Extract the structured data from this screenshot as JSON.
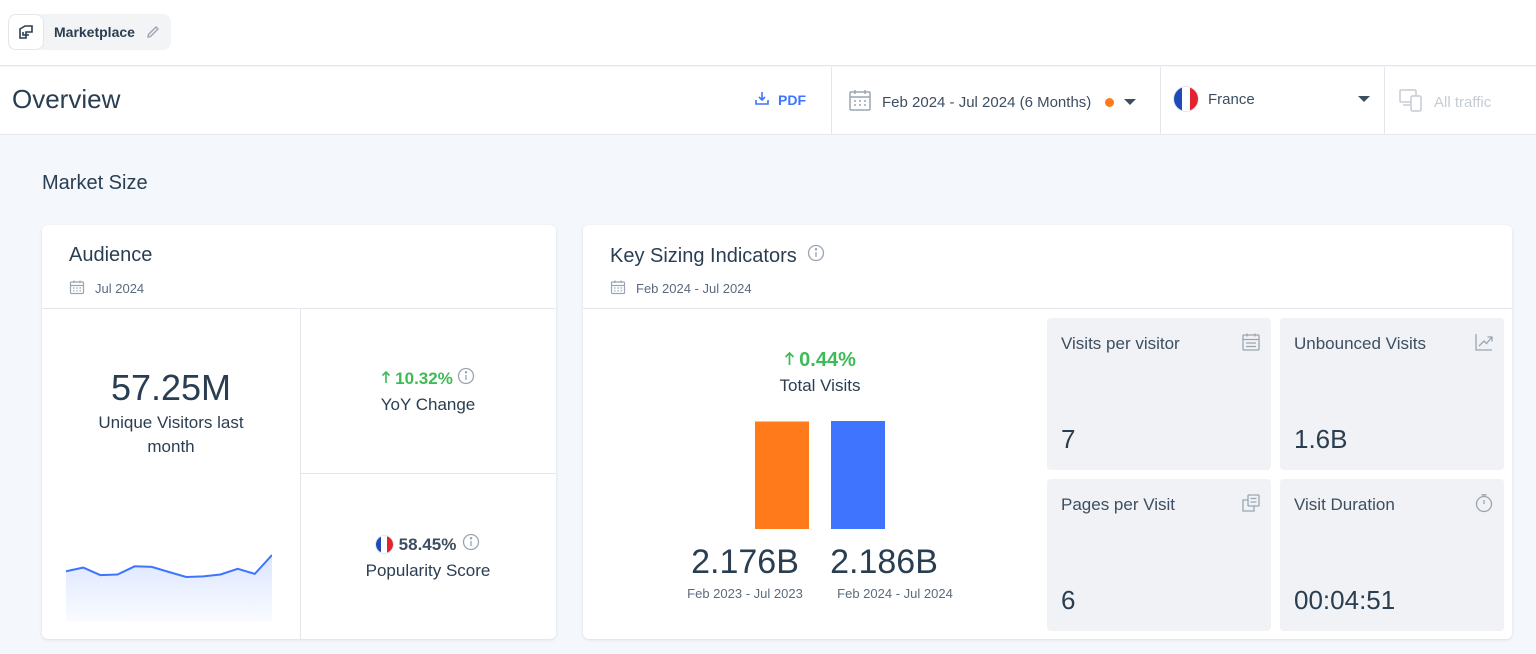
{
  "workspace": {
    "label": "Marketplace"
  },
  "header": {
    "title": "Overview",
    "pdf_label": "PDF",
    "date_range": "Feb 2024 - Jul 2024 (6 Months)",
    "country": "France",
    "traffic": "All traffic"
  },
  "section": {
    "title": "Market Size"
  },
  "audience": {
    "title": "Audience",
    "date": "Jul 2024",
    "unique_visitors": "57.25M",
    "unique_visitors_label": "Unique Visitors last month",
    "yoy_value": "10.32%",
    "yoy_label": "YoY Change",
    "popularity_value": "58.45%",
    "popularity_label": "Popularity Score",
    "sparkline": [
      56.2,
      56.8,
      55.6,
      55.7,
      57.0,
      56.9,
      56.1,
      55.3,
      55.4,
      55.7,
      56.6,
      55.8,
      58.8
    ]
  },
  "key_sizing": {
    "title": "Key Sizing Indicators",
    "date": "Feb 2024 - Jul 2024",
    "total_visits_change": "0.44%",
    "total_visits_label": "Total Visits",
    "tiles": [
      {
        "label": "Visits per visitor",
        "value": "7",
        "icon": "calendar-icon"
      },
      {
        "label": "Unbounced Visits",
        "value": "1.6B",
        "icon": "trend-icon"
      },
      {
        "label": "Pages per Visit",
        "value": "6",
        "icon": "pages-icon"
      },
      {
        "label": "Visit Duration",
        "value": "00:04:51",
        "icon": "timer-icon"
      }
    ]
  },
  "chart_data": {
    "type": "bar",
    "categories": [
      "Feb 2023 - Jul 2023",
      "Feb 2024 - Jul 2024"
    ],
    "values": [
      2.176,
      2.186
    ],
    "value_labels": [
      "2.176B",
      "2.186B"
    ],
    "colors": [
      "#ff7a1a",
      "#3e74fe"
    ]
  },
  "colors": {
    "accent": "#3e74fe",
    "positive": "#3ebb57",
    "orange": "#ff7a1a"
  }
}
